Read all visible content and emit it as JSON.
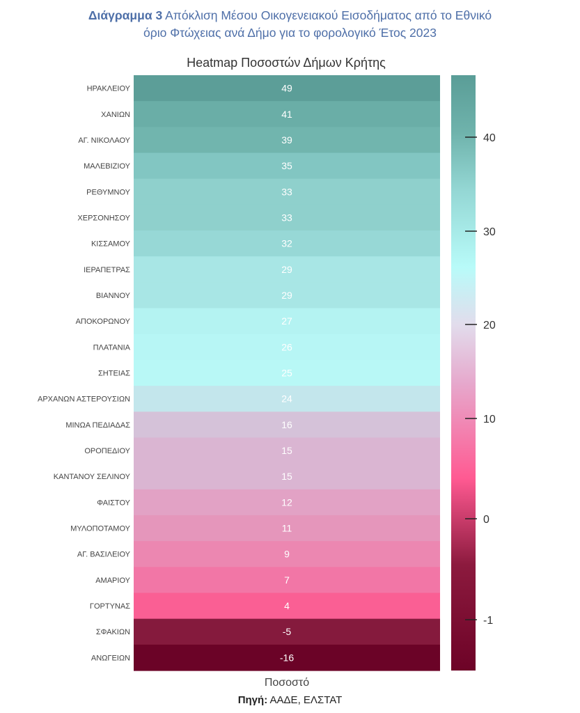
{
  "caption": {
    "label": "Διάγραμμα  3",
    "line1": "Απόκλιση Μέσου Οικογενειακού Εισοδήματος από το Εθνικό",
    "line2": "όριο Φτώχειας ανά Δήμο για το φορολογικό Έτος 2023"
  },
  "source": {
    "label": "Πηγή:",
    "text": "ΑΑΔΕ, ΕΛΣΤΑΤ"
  },
  "chart_data": {
    "type": "heatmap",
    "title": "Heatmap Ποσοστών Δήμων Κρήτης",
    "xlabel": "Ποσοστό",
    "ylabel": "",
    "rows": [
      "ΗΡΑΚΛΕΙΟΥ",
      "ΧΑΝΙΩΝ",
      "ΑΓ. ΝΙΚΟΛΑΟΥ",
      "ΜΑΛΕΒΙΖΙΟΥ",
      "ΡΕΘΥΜΝΟΥ",
      "ΧΕΡΣΟΝΗΣΟΥ",
      "ΚΙΣΣΑΜΟΥ",
      "ΙΕΡΑΠΕΤΡΑΣ",
      "ΒΙΑΝΝΟΥ",
      "ΑΠΟΚΟΡΩΝΟΥ",
      "ΠΛΑΤΑΝΙΑ",
      "ΣΗΤΕΙΑΣ",
      "ΑΡΧΑΝΩΝ ΑΣΤΕΡΟΥΣΙΩΝ",
      "ΜΙΝΩΑ ΠΕΔΙΑΔΑΣ",
      "ΟΡΟΠΕΔΙΟΥ",
      "ΚΑΝΤΑΝΟΥ ΣΕΛΙΝΟΥ",
      "ΦΑΙΣΤΟΥ",
      "ΜΥΛΟΠΟΤΑΜΟΥ",
      "ΑΓ. ΒΑΣΙΛΕΙΟΥ",
      "ΑΜΑΡΙΟΥ",
      "ΓΟΡΤΥΝΑΣ",
      "ΣΦΑΚΙΩΝ",
      "ΑΝΩΓΕΙΩΝ"
    ],
    "values": [
      49,
      41,
      39,
      35,
      33,
      33,
      32,
      29,
      29,
      27,
      26,
      25,
      24,
      16,
      15,
      15,
      12,
      11,
      9,
      7,
      4,
      -5,
      -16
    ],
    "colorbar": {
      "ticks": [
        40,
        30,
        20,
        10,
        0,
        -1
      ],
      "stops": [
        {
          "value": 46,
          "color": "#5a9d97"
        },
        {
          "value": 40,
          "color": "#6fb3ac"
        },
        {
          "value": 34,
          "color": "#94d7d4"
        },
        {
          "value": 26,
          "color": "#b8fbf9"
        },
        {
          "value": 20,
          "color": "#e2dcec"
        },
        {
          "value": 14,
          "color": "#e6a9cd"
        },
        {
          "value": 4,
          "color": "#ff5a92"
        },
        {
          "value": -5,
          "color": "#8c1a3e"
        },
        {
          "value": -16,
          "color": "#6d0327"
        }
      ]
    },
    "row_colors": [
      "#5c9e98",
      "#6aaea7",
      "#71b5ae",
      "#82c6c2",
      "#8fd0cc",
      "#8fd0cc",
      "#97d8d6",
      "#a8e6e5",
      "#a8e6e5",
      "#b4f3f2",
      "#b7f6f5",
      "#b8f8f6",
      "#c3e6ec",
      "#d5c2d9",
      "#dab5d2",
      "#dab5d2",
      "#e2a2c5",
      "#e596bb",
      "#ec87b1",
      "#f276a6",
      "#fa5f94",
      "#851a3d",
      "#6b0327"
    ],
    "grid": false
  }
}
